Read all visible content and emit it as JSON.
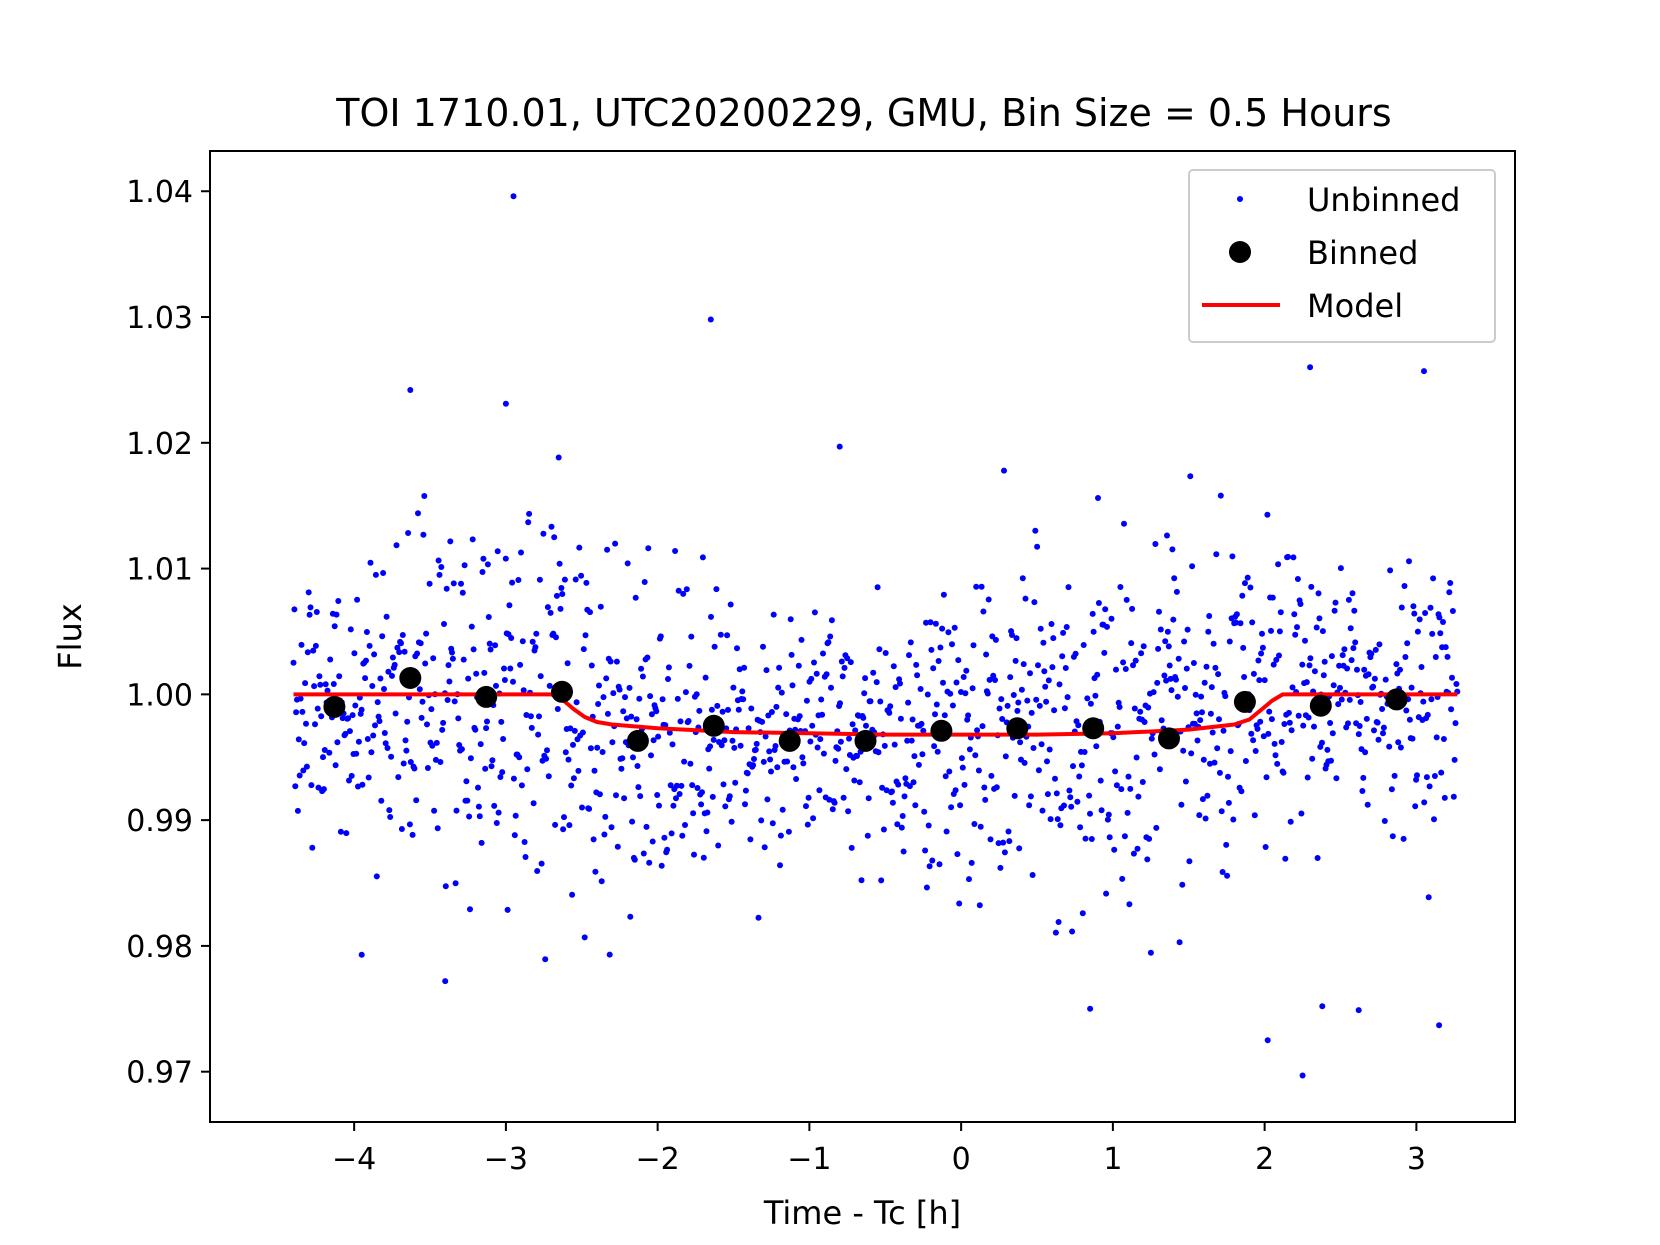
{
  "chart_data": {
    "type": "scatter",
    "title": "TOI 1710.01, UTC20200229, GMU, Bin Size = 0.5 Hours",
    "xlabel": "Time - Tc [h]",
    "ylabel": "Flux",
    "xlim": [
      -4.95,
      3.65
    ],
    "ylim": [
      0.966,
      1.0432
    ],
    "xticks": [
      -4,
      -3,
      -2,
      -1,
      0,
      1,
      2,
      3
    ],
    "xtick_labels": [
      "−4",
      "−3",
      "−2",
      "−1",
      "0",
      "1",
      "2",
      "3"
    ],
    "yticks": [
      0.97,
      0.98,
      0.99,
      1.0,
      1.01,
      1.02,
      1.03,
      1.04
    ],
    "ytick_labels": [
      "0.97",
      "0.98",
      "0.99",
      "1.00",
      "1.01",
      "1.02",
      "1.03",
      "1.04"
    ],
    "grid": false,
    "legend_position": "top-right",
    "series": [
      {
        "name": "Unbinned",
        "style": "small-dot",
        "color": "#0000ff",
        "note": "approx. 1300 noisy points, std ~0.006 about the model, times -4.4 to 3.27 h",
        "n_points": 1300,
        "x_range": [
          -4.4,
          3.27
        ],
        "scatter_std": 0.0062,
        "outliers": [
          {
            "x": -2.95,
            "y": 1.0396
          },
          {
            "x": -1.65,
            "y": 1.0298
          },
          {
            "x": -3.63,
            "y": 1.0242
          },
          {
            "x": -3.0,
            "y": 1.0231
          },
          {
            "x": -0.8,
            "y": 1.0197
          },
          {
            "x": 2.3,
            "y": 1.026
          },
          {
            "x": 3.05,
            "y": 1.0257
          },
          {
            "x": -3.95,
            "y": 0.9793
          },
          {
            "x": -3.4,
            "y": 0.9772
          },
          {
            "x": 0.85,
            "y": 0.975
          },
          {
            "x": 2.02,
            "y": 0.9725
          },
          {
            "x": 2.25,
            "y": 0.9697
          },
          {
            "x": 3.15,
            "y": 0.9737
          },
          {
            "x": 2.38,
            "y": 0.9752
          },
          {
            "x": 2.62,
            "y": 0.9749
          }
        ]
      },
      {
        "name": "Binned",
        "style": "large-dot",
        "color": "#000000",
        "x": [
          -4.13,
          -3.63,
          -3.13,
          -2.63,
          -2.13,
          -1.63,
          -1.13,
          -0.63,
          -0.13,
          0.37,
          0.87,
          1.37,
          1.87,
          2.37,
          2.87
        ],
        "y": [
          0.999,
          1.0013,
          0.9998,
          1.0002,
          0.9963,
          0.9975,
          0.9963,
          0.9963,
          0.9971,
          0.9973,
          0.9973,
          0.9965,
          0.9994,
          0.9991,
          0.9996
        ]
      },
      {
        "name": "Model",
        "style": "line",
        "color": "#ff0000",
        "x": [
          -4.4,
          -2.7,
          -2.62,
          -2.55,
          -2.48,
          -2.4,
          -2.3,
          -2.0,
          -1.5,
          -1.0,
          -0.5,
          0.0,
          0.5,
          1.0,
          1.5,
          1.8,
          1.9,
          1.98,
          2.05,
          2.12,
          2.2,
          3.27
        ],
        "y": [
          1.0,
          1.0,
          0.9995,
          0.9988,
          0.9982,
          0.9978,
          0.9976,
          0.9973,
          0.997,
          0.9969,
          0.9968,
          0.9968,
          0.9968,
          0.9969,
          0.9972,
          0.9976,
          0.998,
          0.9988,
          0.9995,
          1.0,
          1.0,
          1.0
        ]
      }
    ]
  }
}
